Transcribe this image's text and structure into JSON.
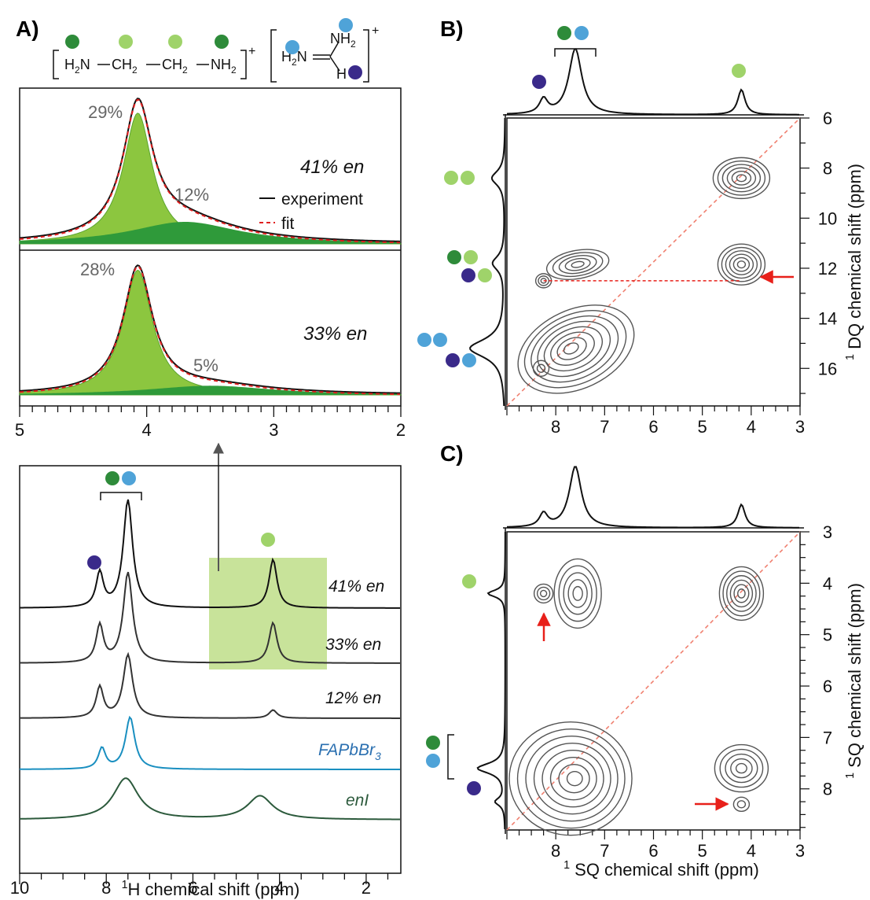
{
  "panel_labels": {
    "a": "A)",
    "b": "B)",
    "c": "C)"
  },
  "colors": {
    "enn": "#2e8b3a",
    "enc": "#9fd36a",
    "fan": "#4fa3d8",
    "fach": "#3a2a8a",
    "fa_trace": "#1a8fc0",
    "eni_trace": "#2c5a3c",
    "fill_light": "#8cc63f",
    "fill_dark": "#2f9a3a",
    "highlight": "#c8e39a",
    "fit": "#e02020",
    "arrow": "#e8201a"
  },
  "structures": {
    "en": {
      "left_part": "H",
      "n1_sub": "2",
      "n1": "N",
      "ch2_a": "CH",
      "ch2_a_sub": "2",
      "ch2_b": "CH",
      "ch2_b_sub": "2",
      "nh2": "NH",
      "nh2_sub": "2",
      "charge": "+"
    },
    "fa": {
      "h2n": "H",
      "h2n_sub": "2",
      "h2n_n": "N",
      "nh2": "NH",
      "nh2_sub": "2",
      "h": "H",
      "charge": "+"
    }
  },
  "chart_data": [
    {
      "panel": "A-top",
      "type": "line",
      "xlim": [
        5,
        2
      ],
      "xticks": [
        "5",
        "4",
        "3",
        "2"
      ],
      "legend": [
        "experiment",
        "fit"
      ],
      "spectra": [
        {
          "label": "41% en",
          "annotations": [
            "29%",
            "12%"
          ],
          "components": [
            {
              "name": "CH2",
              "center": 4.07,
              "width": 0.14,
              "height": 1.0
            },
            {
              "name": "NH2",
              "center": 3.7,
              "width": 0.52,
              "height": 0.16
            }
          ]
        },
        {
          "label": "33% en",
          "annotations": [
            "28%",
            "5%"
          ],
          "components": [
            {
              "name": "CH2",
              "center": 4.07,
              "width": 0.14,
              "height": 1.0
            },
            {
              "name": "NH2",
              "center": 3.5,
              "width": 0.6,
              "height": 0.07
            }
          ]
        }
      ]
    },
    {
      "panel": "A-bottom",
      "type": "line",
      "xlabel": "1H chemical shift (ppm)",
      "xlim": [
        10,
        1.2
      ],
      "xticks": [
        "10",
        "8",
        "6",
        "4",
        "2"
      ],
      "spectra": [
        {
          "label": "41% en",
          "peaks": [
            {
              "ppm": 8.15,
              "h": 0.32
            },
            {
              "ppm": 7.5,
              "h": 1.0
            },
            {
              "ppm": 4.15,
              "h": 0.45
            }
          ]
        },
        {
          "label": "33% en",
          "peaks": [
            {
              "ppm": 8.15,
              "h": 0.35
            },
            {
              "ppm": 7.5,
              "h": 0.85
            },
            {
              "ppm": 4.15,
              "h": 0.38
            }
          ]
        },
        {
          "label": "12% en",
          "peaks": [
            {
              "ppm": 8.15,
              "h": 0.3
            },
            {
              "ppm": 7.5,
              "h": 0.62
            },
            {
              "ppm": 4.15,
              "h": 0.08
            }
          ]
        },
        {
          "label": "FAPbBr",
          "label_sub": "3",
          "peaks": [
            {
              "ppm": 8.1,
              "h": 0.22
            },
            {
              "ppm": 7.45,
              "h": 0.55
            }
          ]
        },
        {
          "label": "enI",
          "peaks": [
            {
              "ppm": 7.55,
              "h": 0.42
            },
            {
              "ppm": 4.45,
              "h": 0.24
            }
          ]
        }
      ]
    },
    {
      "panel": "B",
      "type": "scatter",
      "xlim": [
        9,
        3
      ],
      "ylim": [
        6,
        17.5
      ],
      "xticks": [
        "8",
        "7",
        "6",
        "5",
        "4",
        "3"
      ],
      "yticks": [
        "6",
        "8",
        "10",
        "12",
        "14",
        "16"
      ],
      "ylabel": "1H DQ chemical shift (ppm)",
      "correlations": [
        {
          "x": 4.2,
          "y": 8.4
        },
        {
          "x": 4.2,
          "y": 11.8
        },
        {
          "x": 7.55,
          "y": 11.8
        },
        {
          "x": 8.25,
          "y": 12.5
        },
        {
          "x": 7.55,
          "y": 15.2
        },
        {
          "x": 8.25,
          "y": 16.0
        }
      ]
    },
    {
      "panel": "C",
      "type": "scatter",
      "xlim": [
        9,
        3
      ],
      "ylim": [
        3,
        8.8
      ],
      "xticks": [
        "8",
        "7",
        "6",
        "5",
        "4",
        "3"
      ],
      "yticks": [
        "3",
        "4",
        "5",
        "6",
        "7",
        "8"
      ],
      "xlabel": "1H SQ chemical shift (ppm)",
      "ylabel": "1H SQ chemical shift (ppm)",
      "correlations": [
        {
          "x": 8.25,
          "y": 4.2
        },
        {
          "x": 7.55,
          "y": 4.2
        },
        {
          "x": 4.2,
          "y": 4.2
        },
        {
          "x": 7.55,
          "y": 7.6
        },
        {
          "x": 8.25,
          "y": 8.25
        },
        {
          "x": 4.2,
          "y": 7.6
        },
        {
          "x": 4.2,
          "y": 8.3
        }
      ]
    }
  ]
}
